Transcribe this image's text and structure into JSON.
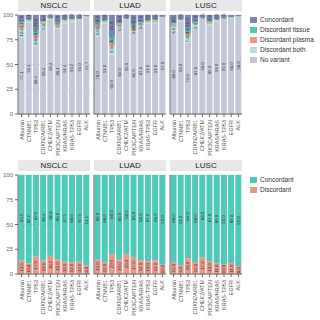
{
  "chart_data": [
    {
      "type": "bar",
      "title": "NSCLC",
      "stacked": true,
      "data_labels": true,
      "grid": true,
      "categories": [
        "Albumin",
        "CTNNB1",
        "TP53",
        "CDKN2A/RB1",
        "CHEK2/ATM",
        "PIK3CA/PTEN",
        "KRAS/NRAS",
        "KRAS-TP53",
        "EGFR",
        "ALK"
      ],
      "ylim": [
        0,
        100
      ],
      "yticks": [
        0,
        25,
        50,
        75,
        100
      ],
      "series": [
        {
          "name": "No variant",
          "color": "#c4c8d8",
          "values": [
            77.1,
            92.1,
            68.4,
            85.4,
            95.4,
            86.1,
            91.4,
            93.2,
            94.0,
            97.7
          ],
          "value_labels": [
            "77.1",
            "92.1",
            "68.4",
            "85.4",
            "95.4",
            "86.1",
            "91.4",
            "93.2",
            "94.0",
            "97.7"
          ]
        },
        {
          "name": "Discordant both",
          "color": "#b8ddd8",
          "values": [
            10.8,
            2.0,
            8.8,
            5.5,
            1.1,
            2.4,
            2.0,
            1.8,
            1.4,
            0.5
          ],
          "value_labels": [
            "10.8",
            null,
            "8.8",
            "5.5",
            null,
            null,
            null,
            null,
            null,
            null
          ]
        },
        {
          "name": "Discordant plasma",
          "color": "#e8998a",
          "values": [
            3.1,
            1.0,
            3.0,
            1.5,
            0.5,
            2.5,
            1.0,
            1.0,
            0.8,
            0.3
          ],
          "value_labels": [
            "3.1",
            null,
            "3.0",
            null,
            null,
            "2.5",
            null,
            null,
            null,
            null
          ]
        },
        {
          "name": "Discordant tissue",
          "color": "#4fc9b8",
          "values": [
            1.5,
            0.8,
            4.0,
            1.2,
            0.3,
            2.0,
            1.0,
            0.8,
            0.6,
            0.3
          ],
          "value_labels": [
            null,
            null,
            "4.0",
            null,
            null,
            null,
            null,
            null,
            null,
            null
          ]
        },
        {
          "name": "Concordant",
          "color": "#7b85b0",
          "values": [
            7.5,
            4.1,
            15.8,
            6.4,
            2.7,
            7.0,
            4.6,
            3.2,
            3.2,
            1.2
          ],
          "value_labels": [
            "7.5",
            "4.1",
            "15.8",
            "6.4",
            "2.7",
            "7.0",
            "4.6",
            "3.2",
            "3.2",
            null
          ]
        }
      ]
    },
    {
      "type": "bar",
      "title": "LUAD",
      "stacked": true,
      "data_labels": true,
      "grid": true,
      "tick_labels": "x",
      "categories": [
        "Albumin",
        "CTNNB1",
        "TP53",
        "CDKN2A/RB1",
        "CHEK2/ATM",
        "PIK3CA/PTEN",
        "KRAS/NRAS",
        "KRAS-TP53",
        "EGFR",
        "ALK"
      ],
      "ylim": [
        0,
        100
      ],
      "yticks": [
        0,
        25,
        50,
        75,
        100
      ],
      "series": [
        {
          "name": "No variant",
          "color": "#c4c8d8",
          "values": [
            78.0,
            91.0,
            60.0,
            84.0,
            95.0,
            82.0,
            87.0,
            91.0,
            91.0,
            97.0
          ],
          "value_labels": [
            "78.0",
            "91.0",
            "60.0",
            "84.0",
            "95.0",
            "82.0",
            "87.0",
            "91.0",
            "91.0",
            "97.0"
          ]
        },
        {
          "name": "Discordant both",
          "color": "#b8ddd8",
          "values": [
            9.0,
            2.0,
            9.0,
            5.0,
            1.0,
            3.0,
            3.0,
            2.0,
            2.0,
            0.5
          ],
          "value_labels": [
            "9.0",
            null,
            "9.0",
            "5.0",
            null,
            "3.0",
            "3.0",
            null,
            null,
            null
          ]
        },
        {
          "name": "Discordant plasma",
          "color": "#e8998a",
          "values": [
            3.0,
            1.0,
            4.0,
            2.0,
            0.5,
            3.0,
            1.5,
            1.0,
            1.5,
            0.3
          ],
          "value_labels": [
            "3.0",
            null,
            "4.0",
            null,
            null,
            "3.0",
            null,
            null,
            null,
            null
          ]
        },
        {
          "name": "Discordant tissue",
          "color": "#4fc9b8",
          "values": [
            2.0,
            1.0,
            5.0,
            1.0,
            0.3,
            3.0,
            1.0,
            1.0,
            1.0,
            0.3
          ],
          "value_labels": [
            null,
            null,
            "5.0",
            null,
            null,
            "3.0",
            null,
            null,
            null,
            null
          ]
        },
        {
          "name": "Concordant",
          "color": "#7b85b0",
          "values": [
            8.0,
            5.0,
            22.0,
            8.0,
            3.2,
            9.0,
            7.5,
            5.0,
            4.5,
            1.9
          ],
          "value_labels": [
            "8.0",
            "5.0",
            "22.0",
            "8.0",
            "3.2",
            "9.0",
            "7.5",
            "5.0",
            "4.5",
            null
          ]
        }
      ]
    },
    {
      "type": "bar",
      "title": "LUSC",
      "stacked": true,
      "data_labels": true,
      "grid": true,
      "tick_labels": "x",
      "legend": "right",
      "categories": [
        "Albumin",
        "CTNNB1",
        "TP53",
        "CDKN2A/RB1",
        "CHEK2/ATM",
        "PIK3CA/PTEN",
        "KRAS/NRAS",
        "KRAS-TP53",
        "EGFR",
        "ALK"
      ],
      "ylim": [
        0,
        100
      ],
      "yticks": [
        0,
        25,
        50,
        75,
        100
      ],
      "series": [
        {
          "name": "No variant",
          "color": "#c4c8d8",
          "values": [
            80.0,
            93.0,
            72.0,
            87.0,
            96.0,
            89.0,
            93.0,
            95.0,
            96.0,
            98.0
          ],
          "value_labels": [
            "80.0",
            "93.0",
            "72.0",
            "87.0",
            "96.0",
            "89.0",
            "93.0",
            "95.0",
            "96.0",
            "98.0"
          ]
        },
        {
          "name": "Discordant both",
          "color": "#b8ddd8",
          "values": [
            8.0,
            1.5,
            7.0,
            4.0,
            1.0,
            2.0,
            1.5,
            1.2,
            1.0,
            0.3
          ],
          "value_labels": [
            "8.0",
            null,
            "7.0",
            "4.0",
            null,
            null,
            null,
            null,
            null,
            null
          ]
        },
        {
          "name": "Discordant plasma",
          "color": "#e8998a",
          "values": [
            2.0,
            0.8,
            2.5,
            1.0,
            0.3,
            1.5,
            0.8,
            0.8,
            0.5,
            0.2
          ],
          "value_labels": [
            null,
            null,
            "2.5",
            null,
            null,
            null,
            null,
            null,
            null,
            null
          ]
        },
        {
          "name": "Discordant tissue",
          "color": "#4fc9b8",
          "values": [
            1.5,
            0.7,
            3.5,
            1.0,
            0.2,
            1.5,
            0.7,
            0.5,
            0.4,
            0.2
          ],
          "value_labels": [
            null,
            null,
            "3.5",
            null,
            null,
            null,
            null,
            null,
            null,
            null
          ]
        },
        {
          "name": "Concordant",
          "color": "#7b85b0",
          "values": [
            8.5,
            4.0,
            15.0,
            7.0,
            2.5,
            6.0,
            4.0,
            2.5,
            2.1,
            1.3
          ],
          "value_labels": [
            "8.5",
            "4.0",
            "15.0",
            "7.0",
            "2.5",
            "6.0",
            "4.0",
            "2.5",
            null,
            null
          ]
        }
      ]
    },
    {
      "type": "bar",
      "title": "NSCLC",
      "stacked": true,
      "data_labels": true,
      "grid": true,
      "categories": [
        "Albumin",
        "CTNNB1",
        "TP53",
        "CDKN2A/RB1",
        "CHEK2/ATM",
        "PIK3CA/PTEN",
        "KRAS/NRAS",
        "KRAS-TP53",
        "EGFR",
        "ALK"
      ],
      "ylim": [
        0,
        100
      ],
      "yticks": [
        0,
        25,
        50,
        75,
        100
      ],
      "series": [
        {
          "name": "Discordant",
          "color": "#e8998a",
          "values": [
            13.5,
            10.8,
            17.5,
            13.6,
            18.25,
            15.0,
            12.5,
            12.0,
            12.5,
            8.8
          ],
          "value_labels": [
            "13.5",
            "10.8",
            "17.5",
            "13.6",
            "18.2",
            "15.0",
            "12.5",
            "12.0",
            "12.5",
            "8.8"
          ]
        },
        {
          "name": "Concordant",
          "color": "#4fc9b8",
          "values": [
            86.5,
            89.2,
            82.5,
            86.4,
            81.75,
            85.0,
            87.5,
            88.0,
            87.5,
            91.2
          ],
          "value_labels": [
            "86.5",
            "89.2",
            "82.5",
            "86.4",
            "81.8",
            "85.0",
            "87.5",
            "88.0",
            "87.5",
            "91.2"
          ]
        }
      ]
    },
    {
      "type": "bar",
      "title": "LUAD",
      "stacked": true,
      "data_labels": true,
      "grid": true,
      "tick_labels": "x",
      "categories": [
        "Albumin",
        "CTNNB1",
        "TP53",
        "CDKN2A/RB1",
        "CHEK2/ATM",
        "PIK3CA/PTEN",
        "KRAS/NRAS",
        "KRAS-TP53",
        "EGFR",
        "ALK"
      ],
      "ylim": [
        0,
        100
      ],
      "yticks": [
        0,
        25,
        50,
        75,
        100
      ],
      "series": [
        {
          "name": "Discordant",
          "color": "#e8998a",
          "values": [
            15.0,
            12.0,
            20.0,
            15.0,
            20.0,
            17.0,
            14.0,
            13.0,
            14.0,
            10.0
          ],
          "value_labels": [
            "15.0",
            "12.0",
            "20.0",
            "15.0",
            "20.0",
            "17.0",
            "14.0",
            "13.0",
            "14.0",
            "10.0"
          ]
        },
        {
          "name": "Concordant",
          "color": "#4fc9b8",
          "values": [
            85.0,
            88.0,
            80.0,
            85.0,
            80.0,
            83.0,
            86.0,
            87.0,
            86.0,
            90.0
          ],
          "value_labels": [
            "85.0",
            "88.0",
            "80.0",
            "85.0",
            "80.0",
            "83.0",
            "86.0",
            "87.0",
            "86.0",
            "90.0"
          ]
        }
      ]
    },
    {
      "type": "bar",
      "title": "LUSC",
      "stacked": true,
      "data_labels": true,
      "grid": true,
      "tick_labels": "x",
      "legend": "right",
      "categories": [
        "Albumin",
        "CTNNB1",
        "TP53",
        "CDKN2A/RB1",
        "CHEK2/ATM",
        "PIK3CA/PTEN",
        "KRAS/NRAS",
        "KRAS-TP53",
        "EGFR",
        "ALK"
      ],
      "ylim": [
        0,
        100
      ],
      "yticks": [
        0,
        25,
        50,
        75,
        100
      ],
      "series": [
        {
          "name": "Discordant",
          "color": "#e8998a",
          "values": [
            12.0,
            9.0,
            16.0,
            12.0,
            17.0,
            13.0,
            11.0,
            10.0,
            11.0,
            8.0
          ],
          "value_labels": [
            "12.0",
            "9.0",
            "16.0",
            "12.0",
            "17.0",
            "13.0",
            "11.0",
            "10.0",
            "11.0",
            "8.0"
          ]
        },
        {
          "name": "Concordant",
          "color": "#4fc9b8",
          "values": [
            88.0,
            91.0,
            84.0,
            88.0,
            83.0,
            87.0,
            89.0,
            90.0,
            89.0,
            92.0
          ],
          "value_labels": [
            "88.0",
            "91.0",
            "84.0",
            "88.0",
            "83.0",
            "87.0",
            "89.0",
            "90.0",
            "89.0",
            "92.0"
          ]
        }
      ]
    }
  ]
}
